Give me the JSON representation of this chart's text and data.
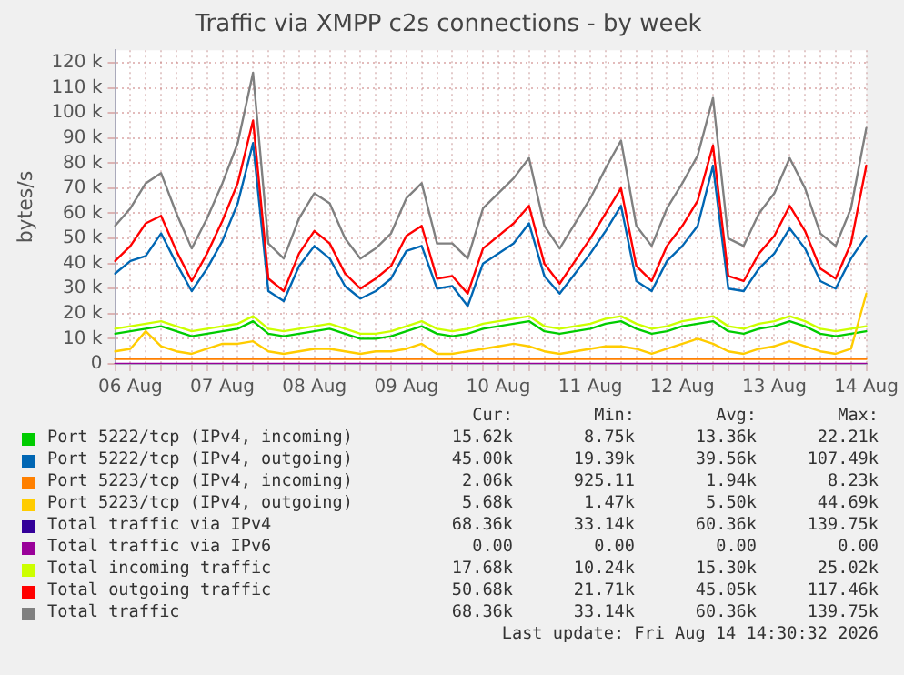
{
  "chart_data": {
    "type": "line",
    "title": "Traffic via XMPP c2s connections - by week",
    "ylabel": "bytes/s",
    "categories": [
      null,
      "06 Aug",
      null,
      null,
      null,
      null,
      null,
      "07 Aug",
      null,
      null,
      null,
      null,
      null,
      "08 Aug",
      null,
      null,
      null,
      null,
      null,
      "09 Aug",
      null,
      null,
      null,
      null,
      null,
      "10 Aug",
      null,
      null,
      null,
      null,
      null,
      "11 Aug",
      null,
      null,
      null,
      null,
      null,
      "12 Aug",
      null,
      null,
      null,
      null,
      null,
      "13 Aug",
      null,
      null,
      null,
      null,
      null,
      "14 Aug"
    ],
    "ylim": [
      0,
      125000
    ],
    "yticks": [
      0,
      {
        "value": 10000,
        "label": "10 k"
      },
      {
        "value": 20000,
        "label": "20 k"
      },
      {
        "value": 30000,
        "label": "30 k"
      },
      {
        "value": 40000,
        "label": "40 k"
      },
      {
        "value": 50000,
        "label": "50 k"
      },
      {
        "value": 60000,
        "label": "60 k"
      },
      {
        "value": 70000,
        "label": "70 k"
      },
      {
        "value": 80000,
        "label": "80 k"
      },
      {
        "value": 90000,
        "label": "90 k"
      },
      {
        "value": 100000,
        "label": "100 k"
      },
      {
        "value": 110000,
        "label": "110 k"
      },
      {
        "value": 120000,
        "label": "120 k"
      }
    ],
    "grid": true,
    "legend": "bottom",
    "marker": "none",
    "line_style": "solid",
    "series": [
      {
        "name": "Port 5222/tcp (IPv4, incoming)",
        "color": "#00cc00",
        "values": [
          12000,
          13000,
          14000,
          15000,
          13000,
          11000,
          12000,
          13000,
          14000,
          17000,
          12000,
          11000,
          12000,
          13000,
          14000,
          12000,
          10000,
          10000,
          11000,
          13000,
          15000,
          12000,
          11000,
          12000,
          14000,
          15000,
          16000,
          17000,
          13000,
          12000,
          13000,
          14000,
          16000,
          17000,
          14000,
          12000,
          13000,
          15000,
          16000,
          17000,
          13000,
          12000,
          14000,
          15000,
          17000,
          15000,
          12000,
          11000,
          12000,
          13000
        ]
      },
      {
        "name": "Port 5222/tcp (IPv4, outgoing)",
        "color": "#0066b3",
        "values": [
          36000,
          41000,
          43000,
          52000,
          40000,
          29000,
          38000,
          49000,
          64000,
          88000,
          29000,
          25000,
          39000,
          47000,
          42000,
          31000,
          26000,
          29000,
          34000,
          45000,
          47000,
          30000,
          31000,
          23000,
          40000,
          44000,
          48000,
          56000,
          35000,
          28000,
          36000,
          44000,
          53000,
          63000,
          33000,
          29000,
          41000,
          47000,
          55000,
          79000,
          30000,
          29000,
          38000,
          44000,
          54000,
          46000,
          33000,
          30000,
          42000,
          51000
        ]
      },
      {
        "name": "Port 5223/tcp (IPv4, incoming)",
        "color": "#ff8000",
        "values": [
          2000,
          2000,
          2000,
          2000,
          2000,
          2000,
          2000,
          2000,
          2000,
          2000,
          2000,
          2000,
          2000,
          2000,
          2000,
          2000,
          2000,
          2000,
          2000,
          2000,
          2000,
          2000,
          2000,
          2000,
          2000,
          2000,
          2000,
          2000,
          2000,
          2000,
          2000,
          2000,
          2000,
          2000,
          2000,
          2000,
          2000,
          2000,
          2000,
          2000,
          2000,
          2000,
          2000,
          2000,
          2000,
          2000,
          2000,
          2000,
          2000,
          2000
        ]
      },
      {
        "name": "Port 5223/tcp (IPv4, outgoing)",
        "color": "#ffcc00",
        "values": [
          5000,
          6000,
          13000,
          7000,
          5000,
          4000,
          6000,
          8000,
          8000,
          9000,
          5000,
          4000,
          5000,
          6000,
          6000,
          5000,
          4000,
          5000,
          5000,
          6000,
          8000,
          4000,
          4000,
          5000,
          6000,
          7000,
          8000,
          7000,
          5000,
          4000,
          5000,
          6000,
          7000,
          7000,
          6000,
          4000,
          6000,
          8000,
          10000,
          8000,
          5000,
          4000,
          6000,
          7000,
          9000,
          7000,
          5000,
          4000,
          6000,
          28000
        ]
      },
      {
        "name": "Total traffic via IPv4",
        "color": "#330099",
        "values": [
          null,
          null,
          null,
          null,
          null,
          null,
          null,
          null,
          null,
          null,
          null,
          null,
          null,
          null,
          null,
          null,
          null,
          null,
          null,
          null,
          null,
          null,
          null,
          null,
          null,
          null,
          null,
          null,
          null,
          null,
          null,
          null,
          null,
          null,
          null,
          null,
          null,
          null,
          null,
          null,
          null,
          null,
          null,
          null,
          null,
          null,
          null,
          null,
          null,
          null
        ]
      },
      {
        "name": "Total traffic via IPv6",
        "color": "#990099",
        "values": [
          0,
          0,
          0,
          0,
          0,
          0,
          0,
          0,
          0,
          0,
          0,
          0,
          0,
          0,
          0,
          0,
          0,
          0,
          0,
          0,
          0,
          0,
          0,
          0,
          0,
          0,
          0,
          0,
          0,
          0,
          0,
          0,
          0,
          0,
          0,
          0,
          0,
          0,
          0,
          0,
          0,
          0,
          0,
          0,
          0,
          0,
          0,
          0,
          0,
          0
        ]
      },
      {
        "name": "Total incoming traffic",
        "color": "#ccff00",
        "values": [
          14000,
          15000,
          16000,
          17000,
          15000,
          13000,
          14000,
          15000,
          16000,
          19000,
          14000,
          13000,
          14000,
          15000,
          16000,
          14000,
          12000,
          12000,
          13000,
          15000,
          17000,
          14000,
          13000,
          14000,
          16000,
          17000,
          18000,
          19000,
          15000,
          14000,
          15000,
          16000,
          18000,
          19000,
          16000,
          14000,
          15000,
          17000,
          18000,
          19000,
          15000,
          14000,
          16000,
          17000,
          19000,
          17000,
          14000,
          13000,
          14000,
          15000
        ]
      },
      {
        "name": "Total outgoing traffic",
        "color": "#ff0000",
        "values": [
          41000,
          47000,
          56000,
          59000,
          45000,
          33000,
          44000,
          57000,
          72000,
          97000,
          34000,
          29000,
          44000,
          53000,
          48000,
          36000,
          30000,
          34000,
          39000,
          51000,
          55000,
          34000,
          35000,
          28000,
          46000,
          51000,
          56000,
          63000,
          40000,
          32000,
          41000,
          50000,
          60000,
          70000,
          39000,
          33000,
          47000,
          55000,
          65000,
          87000,
          35000,
          33000,
          44000,
          51000,
          63000,
          53000,
          38000,
          34000,
          48000,
          79000
        ]
      },
      {
        "name": "Total traffic",
        "color": "#808080",
        "values": [
          55000,
          62000,
          72000,
          76000,
          60000,
          46000,
          58000,
          72000,
          88000,
          116000,
          48000,
          42000,
          58000,
          68000,
          64000,
          50000,
          42000,
          46000,
          52000,
          66000,
          72000,
          48000,
          48000,
          42000,
          62000,
          68000,
          74000,
          82000,
          55000,
          46000,
          56000,
          66000,
          78000,
          89000,
          55000,
          47000,
          62000,
          72000,
          83000,
          106000,
          50000,
          47000,
          60000,
          68000,
          82000,
          70000,
          52000,
          47000,
          62000,
          94000
        ]
      }
    ],
    "annotations": [
      "Cur:",
      "Min:",
      "Avg:",
      "Max:",
      "15.62k",
      "8.75k",
      "13.36k",
      "22.21k",
      "45.00k",
      "19.39k",
      "39.56k",
      "107.49k",
      "2.06k",
      "925.11",
      "1.94k",
      "8.23k",
      "5.68k",
      "1.47k",
      "5.50k",
      "44.69k",
      "68.36k",
      "33.14k",
      "60.36k",
      "139.75k",
      "0.00",
      "0.00",
      "0.00",
      "0.00",
      "17.68k",
      "10.24k",
      "15.30k",
      "25.02k",
      "50.68k",
      "21.71k",
      "45.05k",
      "117.46k",
      "68.36k",
      "33.14k",
      "60.36k",
      "139.75k",
      "Last update: Fri Aug 14 14:30:32 2026"
    ]
  }
}
